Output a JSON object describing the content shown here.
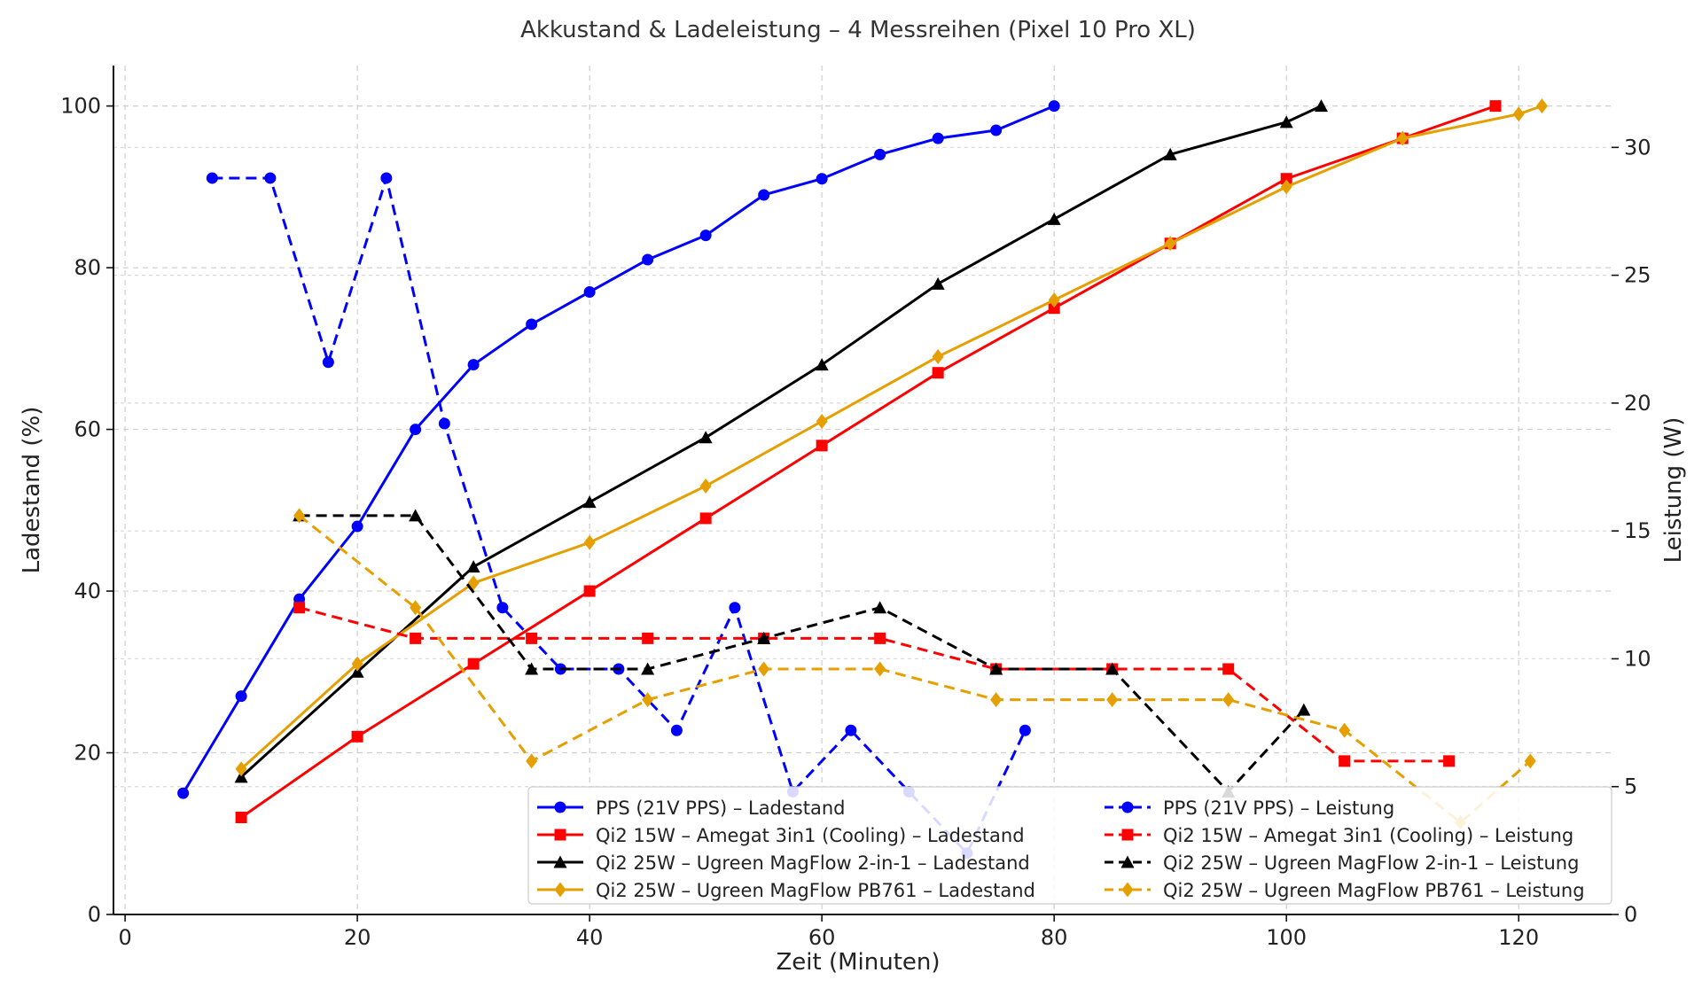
{
  "chart_data": {
    "type": "line",
    "title": "Akkustand & Ladeleistung – 4 Messreihen (Pixel 10 Pro XL)",
    "xlabel": "Zeit (Minuten)",
    "ylabel": "Ladestand (%)",
    "y2label": "Leistung (W)",
    "xlim": [
      -1,
      128
    ],
    "ylim": [
      0,
      105
    ],
    "y2lim": [
      0,
      33.2
    ],
    "xticks": [
      0,
      20,
      40,
      60,
      80,
      100,
      120
    ],
    "yticks": [
      0,
      20,
      40,
      60,
      80,
      100
    ],
    "y2ticks": [
      0,
      5,
      10,
      15,
      20,
      25,
      30
    ],
    "grid": true,
    "legend_position": "bottom-right",
    "series": [
      {
        "name": "PPS (21V PPS) – Ladestand",
        "axis": "left",
        "color": "#0000ff",
        "marker": "circle",
        "dash": false,
        "x": [
          5,
          10,
          15,
          20,
          25,
          30,
          35,
          40,
          45,
          50,
          55,
          60,
          65,
          70,
          75,
          80
        ],
        "y": [
          15,
          27,
          39,
          48,
          60,
          68,
          73,
          77,
          81,
          84,
          89,
          91,
          94,
          96,
          97,
          100
        ]
      },
      {
        "name": "Qi2 15W – Amegat 3in1 (Cooling) – Ladestand",
        "axis": "left",
        "color": "#ff0000",
        "marker": "square",
        "dash": false,
        "x": [
          10,
          20,
          30,
          40,
          50,
          60,
          70,
          80,
          90,
          100,
          110,
          118
        ],
        "y": [
          12,
          22,
          31,
          40,
          49,
          58,
          67,
          75,
          83,
          91,
          96,
          100
        ]
      },
      {
        "name": "Qi2 25W – Ugreen MagFlow 2-in-1 – Ladestand",
        "axis": "left",
        "color": "#000000",
        "marker": "triangle",
        "dash": false,
        "x": [
          10,
          20,
          30,
          40,
          50,
          60,
          70,
          80,
          90,
          100,
          103
        ],
        "y": [
          17,
          30,
          43,
          51,
          59,
          68,
          78,
          86,
          94,
          98,
          100
        ]
      },
      {
        "name": "Qi2 25W – Ugreen MagFlow PB761 – Ladestand",
        "axis": "left",
        "color": "#e69f00",
        "marker": "diamond",
        "dash": false,
        "x": [
          10,
          20,
          30,
          40,
          50,
          60,
          70,
          80,
          90,
          100,
          110,
          120,
          122
        ],
        "y": [
          18,
          31,
          41,
          46,
          53,
          61,
          69,
          76,
          83,
          90,
          96,
          99,
          100
        ]
      },
      {
        "name": "PPS (21V PPS) – Leistung",
        "axis": "right",
        "color": "#0000ff",
        "marker": "circle",
        "dash": true,
        "x": [
          7.5,
          12.5,
          17.5,
          22.5,
          27.5,
          32.5,
          37.5,
          42.5,
          47.5,
          52.5,
          57.5,
          62.5,
          67.5,
          72.5,
          77.5
        ],
        "y": [
          28.8,
          28.8,
          21.6,
          28.8,
          19.2,
          12.0,
          9.6,
          9.6,
          7.2,
          12.0,
          4.8,
          7.2,
          4.8,
          2.4,
          7.2
        ]
      },
      {
        "name": "Qi2 15W – Amegat 3in1 (Cooling) – Leistung",
        "axis": "right",
        "color": "#ff0000",
        "marker": "square",
        "dash": true,
        "x": [
          15,
          25,
          35,
          45,
          55,
          65,
          75,
          85,
          95,
          105,
          114
        ],
        "y": [
          12.0,
          10.8,
          10.8,
          10.8,
          10.8,
          10.8,
          9.6,
          9.6,
          9.6,
          6.0,
          6.0
        ]
      },
      {
        "name": "Qi2 25W – Ugreen MagFlow 2-in-1 – Leistung",
        "axis": "right",
        "color": "#000000",
        "marker": "triangle",
        "dash": true,
        "x": [
          15,
          25,
          35,
          45,
          55,
          65,
          75,
          85,
          95,
          101.5
        ],
        "y": [
          15.6,
          15.6,
          9.6,
          9.6,
          10.8,
          12.0,
          9.6,
          9.6,
          4.8,
          8.0
        ]
      },
      {
        "name": "Qi2 25W – Ugreen MagFlow PB761 – Leistung",
        "axis": "right",
        "color": "#e69f00",
        "marker": "diamond",
        "dash": true,
        "x": [
          15,
          25,
          35,
          45,
          55,
          65,
          75,
          85,
          95,
          105,
          115,
          121
        ],
        "y": [
          15.6,
          12.0,
          6.0,
          8.4,
          9.6,
          9.6,
          8.4,
          8.4,
          8.4,
          7.2,
          3.6,
          6.0
        ]
      }
    ]
  }
}
